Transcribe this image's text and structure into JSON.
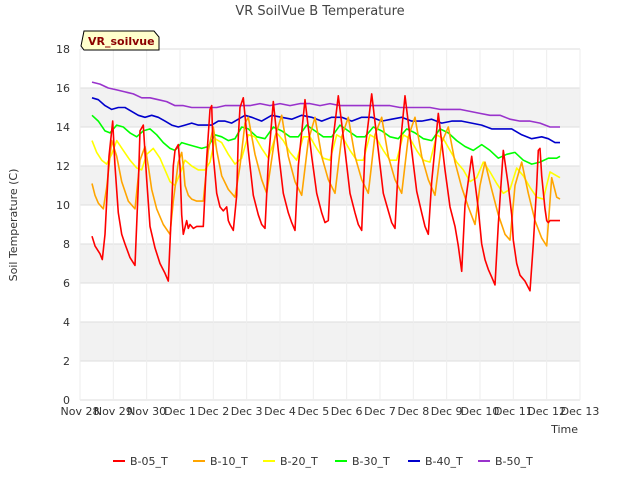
{
  "chart_data": {
    "type": "line",
    "title": "VR SoilVue B Temperature",
    "xlabel": "Time",
    "ylabel": "Soil Temperature (C)",
    "badge": "VR_soilvue",
    "ylim": [
      0,
      18
    ],
    "yticks": [
      0,
      2,
      4,
      6,
      8,
      10,
      12,
      14,
      16,
      18
    ],
    "xlim": [
      0,
      15
    ],
    "xtick_labels": [
      "Nov 28",
      "Nov 29",
      "Nov 30",
      "Dec 1",
      "Dec 2",
      "Dec 3",
      "Dec 4",
      "Dec 5",
      "Dec 6",
      "Dec 7",
      "Dec 8",
      "Dec 9",
      "Dec 10",
      "Dec 11",
      "Dec 12",
      "Dec 13"
    ],
    "grid": "horizontal bands",
    "legend_position": "bottom",
    "series": [
      {
        "name": "B-05_T",
        "color": "#ff0000",
        "x": [
          0.36,
          0.45,
          0.6,
          0.67,
          0.75,
          0.87,
          0.98,
          1.05,
          1.15,
          1.25,
          1.35,
          1.5,
          1.65,
          1.75,
          1.8,
          1.9,
          2.0,
          2.1,
          2.25,
          2.4,
          2.55,
          2.65,
          2.75,
          2.8,
          2.85,
          2.95,
          3.0,
          3.05,
          3.1,
          3.2,
          3.25,
          3.3,
          3.4,
          3.5,
          3.6,
          3.7,
          3.8,
          3.9,
          3.95,
          4.0,
          4.1,
          4.2,
          4.3,
          4.4,
          4.45,
          4.5,
          4.6,
          4.7,
          4.75,
          4.8,
          4.9,
          5.05,
          5.2,
          5.35,
          5.45,
          5.55,
          5.65,
          5.8,
          5.95,
          6.1,
          6.25,
          6.35,
          6.45,
          6.55,
          6.75,
          6.95,
          7.1,
          7.25,
          7.35,
          7.45,
          7.55,
          7.75,
          7.95,
          8.1,
          8.25,
          8.35,
          8.45,
          8.55,
          8.75,
          8.95,
          9.1,
          9.25,
          9.35,
          9.45,
          9.55,
          9.75,
          9.95,
          10.1,
          10.25,
          10.35,
          10.45,
          10.55,
          10.75,
          10.95,
          11.1,
          11.25,
          11.35,
          11.45,
          11.55,
          11.75,
          11.95,
          12.05,
          12.15,
          12.25,
          12.35,
          12.45,
          12.55,
          12.7,
          12.85,
          12.95,
          13.0,
          13.05,
          13.1,
          13.2,
          13.35,
          13.5,
          13.6,
          13.7,
          13.75,
          13.8,
          13.85,
          13.95,
          14.0,
          14.05,
          14.1,
          14.2,
          14.25,
          14.3,
          14.4
        ],
        "y": [
          8.4,
          7.9,
          7.5,
          7.2,
          8.5,
          12.5,
          14.3,
          12.0,
          9.6,
          8.5,
          8.0,
          7.3,
          6.9,
          11.0,
          13.8,
          14.1,
          11.3,
          8.9,
          7.8,
          7.0,
          6.5,
          6.1,
          10.0,
          12.0,
          12.8,
          13.1,
          12.0,
          9.5,
          8.5,
          9.2,
          8.8,
          9.0,
          8.8,
          8.9,
          8.9,
          8.9,
          12.4,
          14.9,
          15.1,
          12.5,
          10.6,
          9.9,
          9.7,
          9.9,
          9.2,
          9.0,
          8.7,
          10.5,
          13.5,
          15.0,
          15.5,
          12.8,
          10.5,
          9.5,
          9.0,
          8.8,
          12.2,
          15.3,
          12.8,
          10.6,
          9.6,
          9.1,
          8.7,
          12.0,
          15.4,
          12.5,
          10.6,
          9.6,
          9.1,
          9.2,
          12.8,
          15.6,
          12.8,
          10.6,
          9.6,
          9.0,
          8.7,
          12.8,
          15.7,
          12.8,
          10.6,
          9.7,
          9.1,
          8.8,
          12.0,
          15.6,
          12.8,
          10.7,
          9.6,
          8.9,
          8.5,
          11.2,
          14.7,
          11.8,
          9.9,
          8.9,
          7.9,
          6.6,
          10.0,
          12.5,
          9.8,
          8.0,
          7.2,
          6.7,
          6.3,
          5.9,
          9.0,
          12.8,
          11.0,
          9.5,
          8.2,
          7.6,
          7.0,
          6.4,
          6.1,
          5.6,
          8.0,
          11.0,
          12.8,
          12.9,
          11.5,
          9.8,
          9.2,
          9.1,
          9.2,
          9.2,
          9.2,
          9.2,
          9.2
        ]
      },
      {
        "name": "B-10_T",
        "color": "#ffa500",
        "x": [
          0.36,
          0.45,
          0.55,
          0.7,
          0.8,
          0.95,
          1.1,
          1.25,
          1.45,
          1.65,
          1.8,
          1.95,
          2.05,
          2.15,
          2.3,
          2.5,
          2.7,
          2.8,
          2.95,
          3.05,
          3.1,
          3.15,
          3.25,
          3.35,
          3.5,
          3.7,
          3.85,
          4.0,
          4.1,
          4.25,
          4.45,
          4.65,
          4.8,
          4.95,
          5.05,
          5.25,
          5.45,
          5.6,
          5.85,
          6.05,
          6.25,
          6.45,
          6.65,
          6.85,
          7.05,
          7.25,
          7.45,
          7.65,
          7.85,
          8.05,
          8.25,
          8.45,
          8.65,
          8.85,
          9.05,
          9.25,
          9.45,
          9.65,
          9.85,
          10.05,
          10.25,
          10.45,
          10.65,
          10.85,
          11.05,
          11.25,
          11.45,
          11.65,
          11.85,
          12.0,
          12.15,
          12.35,
          12.55,
          12.75,
          12.9,
          13.05,
          13.25,
          13.45,
          13.65,
          13.85,
          14.0,
          14.15,
          14.3,
          14.4
        ],
        "y": [
          11.1,
          10.5,
          10.1,
          9.8,
          10.9,
          13.3,
          12.5,
          11.2,
          10.2,
          9.8,
          12.3,
          13.0,
          12.0,
          10.8,
          9.8,
          9.0,
          8.5,
          10.2,
          12.2,
          12.7,
          12.0,
          11.0,
          10.5,
          10.3,
          10.2,
          10.2,
          12.8,
          14.0,
          12.8,
          11.5,
          10.8,
          10.4,
          12.0,
          14.2,
          14.5,
          12.6,
          11.3,
          10.6,
          13.5,
          14.6,
          12.5,
          11.2,
          10.5,
          13.3,
          14.5,
          12.5,
          11.3,
          10.6,
          13.5,
          14.5,
          12.5,
          11.3,
          10.6,
          13.6,
          14.5,
          12.5,
          11.3,
          10.6,
          13.5,
          14.5,
          12.5,
          11.3,
          10.5,
          13.2,
          14.0,
          12.2,
          10.9,
          9.9,
          9.0,
          11.0,
          12.2,
          10.8,
          9.5,
          8.5,
          8.2,
          11.0,
          12.2,
          10.6,
          9.2,
          8.3,
          7.9,
          11.4,
          10.4,
          10.3
        ]
      },
      {
        "name": "B-20_T",
        "color": "#ffff00",
        "x": [
          0.36,
          0.5,
          0.65,
          0.8,
          0.95,
          1.1,
          1.3,
          1.5,
          1.7,
          1.85,
          2.0,
          2.2,
          2.4,
          2.55,
          2.7,
          2.85,
          3.0,
          3.15,
          3.35,
          3.55,
          3.75,
          3.9,
          4.05,
          4.25,
          4.45,
          4.65,
          4.85,
          5.05,
          5.25,
          5.45,
          5.65,
          5.9,
          6.1,
          6.3,
          6.5,
          6.7,
          6.9,
          7.1,
          7.3,
          7.5,
          7.7,
          7.9,
          8.1,
          8.3,
          8.5,
          8.7,
          8.9,
          9.1,
          9.3,
          9.5,
          9.7,
          9.9,
          10.1,
          10.3,
          10.5,
          10.7,
          10.9,
          11.1,
          11.3,
          11.5,
          11.7,
          11.9,
          12.1,
          12.3,
          12.5,
          12.7,
          12.9,
          13.1,
          13.3,
          13.5,
          13.7,
          13.9,
          14.1,
          14.3,
          14.4
        ],
        "y": [
          13.3,
          12.7,
          12.3,
          12.1,
          12.6,
          13.3,
          12.8,
          12.3,
          11.9,
          11.8,
          12.6,
          12.9,
          12.4,
          11.8,
          11.2,
          11.0,
          11.6,
          12.3,
          12.0,
          11.8,
          11.8,
          12.2,
          13.4,
          13.2,
          12.6,
          12.1,
          12.4,
          13.6,
          13.5,
          12.9,
          12.4,
          13.7,
          13.3,
          12.7,
          12.3,
          13.5,
          13.5,
          12.9,
          12.4,
          12.3,
          13.6,
          13.4,
          12.8,
          12.3,
          12.3,
          13.6,
          13.4,
          12.8,
          12.3,
          12.3,
          13.6,
          13.4,
          12.8,
          12.3,
          12.2,
          13.6,
          13.4,
          12.8,
          12.2,
          11.8,
          11.2,
          11.4,
          12.2,
          11.7,
          11.1,
          10.6,
          10.8,
          11.9,
          11.5,
          10.9,
          10.4,
          10.3,
          11.7,
          11.5,
          11.4
        ]
      },
      {
        "name": "B-30_T",
        "color": "#00ff00",
        "x": [
          0.36,
          0.55,
          0.75,
          0.9,
          1.1,
          1.3,
          1.5,
          1.7,
          1.9,
          2.1,
          2.3,
          2.5,
          2.7,
          2.85,
          3.05,
          3.25,
          3.45,
          3.65,
          3.85,
          4.05,
          4.25,
          4.45,
          4.65,
          4.85,
          5.05,
          5.3,
          5.55,
          5.8,
          6.05,
          6.3,
          6.55,
          6.8,
          7.05,
          7.3,
          7.55,
          7.8,
          8.05,
          8.3,
          8.55,
          8.8,
          9.05,
          9.3,
          9.55,
          9.8,
          10.05,
          10.3,
          10.55,
          10.8,
          11.05,
          11.3,
          11.55,
          11.8,
          12.05,
          12.3,
          12.55,
          12.8,
          13.05,
          13.3,
          13.55,
          13.8,
          14.05,
          14.3,
          14.4
        ],
        "y": [
          14.6,
          14.3,
          13.8,
          13.7,
          14.1,
          14.0,
          13.7,
          13.5,
          13.8,
          13.9,
          13.6,
          13.2,
          12.9,
          12.8,
          13.2,
          13.1,
          13.0,
          12.9,
          13.0,
          13.6,
          13.5,
          13.3,
          13.4,
          14.0,
          13.9,
          13.5,
          13.4,
          14.0,
          13.8,
          13.5,
          13.5,
          14.1,
          13.8,
          13.5,
          13.5,
          14.1,
          13.8,
          13.5,
          13.5,
          14.0,
          13.8,
          13.5,
          13.4,
          13.9,
          13.7,
          13.4,
          13.3,
          13.9,
          13.7,
          13.3,
          13.0,
          12.8,
          13.1,
          12.8,
          12.4,
          12.6,
          12.7,
          12.3,
          12.1,
          12.2,
          12.4,
          12.4,
          12.5
        ]
      },
      {
        "name": "B-40_T",
        "color": "#0000cc",
        "x": [
          0.36,
          0.55,
          0.75,
          0.95,
          1.15,
          1.35,
          1.55,
          1.75,
          1.95,
          2.15,
          2.35,
          2.55,
          2.75,
          2.95,
          3.15,
          3.35,
          3.55,
          3.75,
          3.95,
          4.15,
          4.35,
          4.55,
          4.75,
          4.95,
          5.15,
          5.45,
          5.75,
          6.05,
          6.35,
          6.65,
          6.95,
          7.25,
          7.55,
          7.85,
          8.15,
          8.45,
          8.75,
          9.05,
          9.35,
          9.65,
          9.95,
          10.25,
          10.55,
          10.85,
          11.15,
          11.45,
          11.75,
          12.05,
          12.35,
          12.65,
          12.95,
          13.25,
          13.55,
          13.85,
          14.05,
          14.25,
          14.4
        ],
        "y": [
          15.5,
          15.4,
          15.1,
          14.9,
          15.0,
          15.0,
          14.8,
          14.6,
          14.5,
          14.6,
          14.5,
          14.3,
          14.1,
          14.0,
          14.1,
          14.2,
          14.1,
          14.1,
          14.1,
          14.3,
          14.3,
          14.2,
          14.4,
          14.6,
          14.5,
          14.3,
          14.6,
          14.5,
          14.4,
          14.6,
          14.5,
          14.3,
          14.5,
          14.5,
          14.3,
          14.5,
          14.5,
          14.3,
          14.4,
          14.5,
          14.3,
          14.3,
          14.4,
          14.2,
          14.3,
          14.3,
          14.2,
          14.1,
          13.9,
          13.9,
          13.9,
          13.6,
          13.4,
          13.5,
          13.4,
          13.2,
          13.2
        ]
      },
      {
        "name": "B-50_T",
        "color": "#9933cc",
        "x": [
          0.36,
          0.6,
          0.85,
          1.1,
          1.35,
          1.6,
          1.85,
          2.1,
          2.35,
          2.6,
          2.85,
          3.1,
          3.35,
          3.6,
          3.85,
          4.1,
          4.35,
          4.6,
          4.85,
          5.1,
          5.4,
          5.7,
          6.0,
          6.3,
          6.6,
          6.9,
          7.2,
          7.5,
          7.8,
          8.1,
          8.4,
          8.7,
          9.0,
          9.3,
          9.6,
          9.9,
          10.2,
          10.5,
          10.8,
          11.1,
          11.4,
          11.7,
          12.0,
          12.3,
          12.6,
          12.9,
          13.2,
          13.5,
          13.8,
          14.1,
          14.4
        ],
        "y": [
          16.3,
          16.2,
          16.0,
          15.9,
          15.8,
          15.7,
          15.5,
          15.5,
          15.4,
          15.3,
          15.1,
          15.1,
          15.0,
          15.0,
          15.0,
          15.0,
          15.1,
          15.1,
          15.1,
          15.1,
          15.2,
          15.1,
          15.2,
          15.1,
          15.2,
          15.2,
          15.1,
          15.2,
          15.1,
          15.1,
          15.1,
          15.1,
          15.1,
          15.1,
          15.0,
          15.0,
          15.0,
          15.0,
          14.9,
          14.9,
          14.9,
          14.8,
          14.7,
          14.6,
          14.6,
          14.4,
          14.3,
          14.3,
          14.2,
          14.0,
          14.0
        ]
      }
    ]
  }
}
